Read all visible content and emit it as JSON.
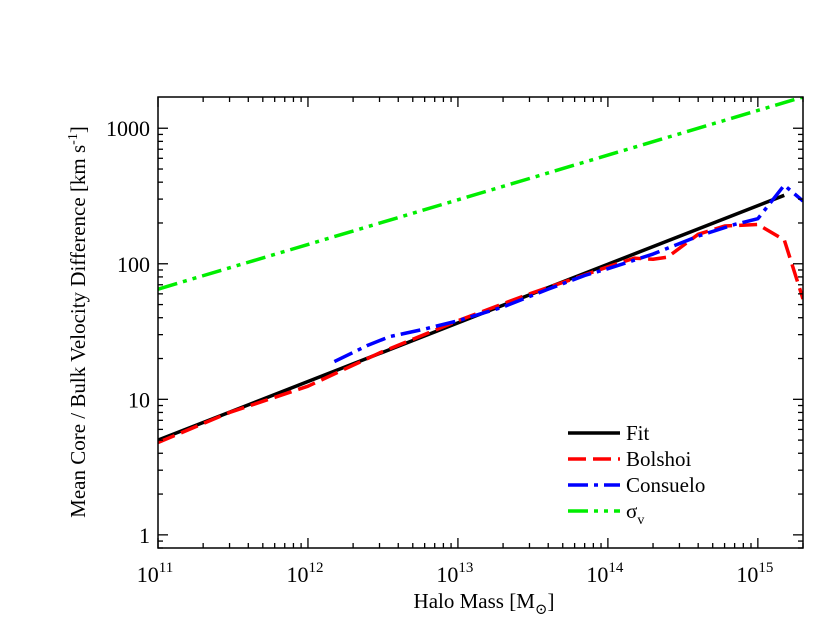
{
  "chart_data": {
    "type": "line",
    "xlabel": "Halo Mass [M",
    "xlabel_sub": "⊙",
    "xlabel_tail": "]",
    "ylabel": "Mean Core / Bulk Velocity Difference [km s",
    "ylabel_sup": "-1",
    "ylabel_tail": "]",
    "xscale": "log",
    "yscale": "log",
    "xlim": [
      100000000000.0,
      2000000000000000.0
    ],
    "ylim": [
      0.8,
      1700
    ],
    "xticks": [
      {
        "value": 100000000000.0,
        "base": "10",
        "exp": "11"
      },
      {
        "value": 1000000000000.0,
        "base": "10",
        "exp": "12"
      },
      {
        "value": 10000000000000.0,
        "base": "10",
        "exp": "13"
      },
      {
        "value": 100000000000000.0,
        "base": "10",
        "exp": "14"
      },
      {
        "value": 1000000000000000.0,
        "base": "10",
        "exp": "15"
      }
    ],
    "yticks": [
      {
        "value": 1,
        "label": "1"
      },
      {
        "value": 10,
        "label": "10"
      },
      {
        "value": 100,
        "label": "100"
      },
      {
        "value": 1000,
        "label": "1000"
      }
    ],
    "grid": false,
    "legend_position": "bottom-right",
    "series": [
      {
        "name": "Fit",
        "color": "#000000",
        "dash": "solid",
        "x": [
          100000000000.0,
          1500000000000000.0
        ],
        "y": [
          5.0,
          320
        ]
      },
      {
        "name": "Bolshoi",
        "color": "#ff0000",
        "dash": "dashed",
        "x": [
          100000000000.0,
          300000000000.0,
          1000000000000.0,
          3000000000000.0,
          10000000000000.0,
          30000000000000.0,
          60000000000000.0,
          100000000000000.0,
          150000000000000.0,
          200000000000000.0,
          250000000000000.0,
          400000000000000.0,
          600000000000000.0,
          1000000000000000.0,
          1500000000000000.0,
          2000000000000000.0
        ],
        "y": [
          4.8,
          8.0,
          12.5,
          22,
          38,
          60,
          78,
          95,
          110,
          108,
          112,
          165,
          190,
          195,
          150,
          55
        ]
      },
      {
        "name": "Consuelo",
        "color": "#0000ff",
        "dash": "dashdot",
        "x": [
          1500000000000.0,
          2500000000000.0,
          3500000000000.0,
          6000000000000.0,
          10000000000000.0,
          20000000000000.0,
          40000000000000.0,
          70000000000000.0,
          100000000000000.0,
          200000000000000.0,
          400000000000000.0,
          700000000000000.0,
          1000000000000000.0,
          1500000000000000.0,
          2000000000000000.0
        ],
        "y": [
          19,
          25,
          29,
          33,
          38,
          48,
          65,
          82,
          92,
          118,
          160,
          195,
          215,
          380,
          290
        ]
      },
      {
        "name": "σ",
        "name_sub": "v",
        "color": "#00ee00",
        "dash": "dashdotdot",
        "x": [
          100000000000.0,
          2000000000000000.0
        ],
        "y": [
          65,
          1700
        ]
      }
    ]
  }
}
